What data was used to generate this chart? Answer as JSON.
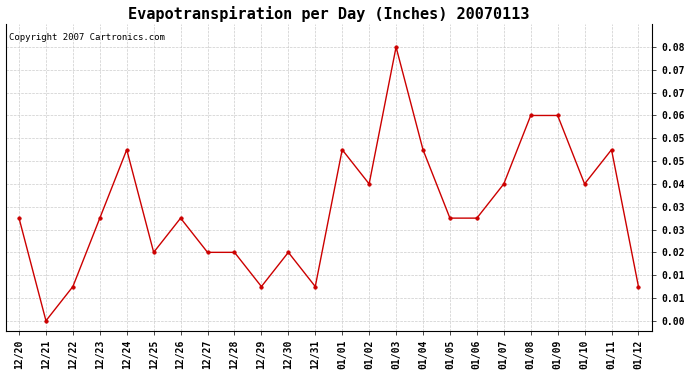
{
  "title": "Evapotranspiration per Day (Inches) 20070113",
  "copyright": "Copyright 2007 Cartronics.com",
  "x_labels": [
    "12/20",
    "12/21",
    "12/22",
    "12/23",
    "12/24",
    "12/25",
    "12/26",
    "12/27",
    "12/28",
    "12/29",
    "12/30",
    "12/31",
    "01/01",
    "01/02",
    "01/03",
    "01/04",
    "01/05",
    "01/06",
    "01/07",
    "01/08",
    "01/09",
    "01/10",
    "01/11",
    "01/12"
  ],
  "y_values": [
    0.03,
    0.0,
    0.01,
    0.03,
    0.05,
    0.02,
    0.03,
    0.02,
    0.02,
    0.01,
    0.02,
    0.01,
    0.05,
    0.04,
    0.08,
    0.05,
    0.03,
    0.03,
    0.04,
    0.06,
    0.06,
    0.04,
    0.05,
    0.01
  ],
  "line_color": "#cc0000",
  "marker": "o",
  "marker_size": 2.5,
  "background_color": "#ffffff",
  "grid_color": "#cccccc",
  "title_fontsize": 11,
  "copyright_fontsize": 6.5,
  "tick_fontsize": 7,
  "ytick_labels": [
    "0.00",
    "0.01",
    "0.01",
    "0.02",
    "0.03",
    "0.03",
    "0.04",
    "0.05",
    "0.05",
    "0.06",
    "0.07",
    "0.07",
    "0.08"
  ],
  "n_yticks": 13
}
